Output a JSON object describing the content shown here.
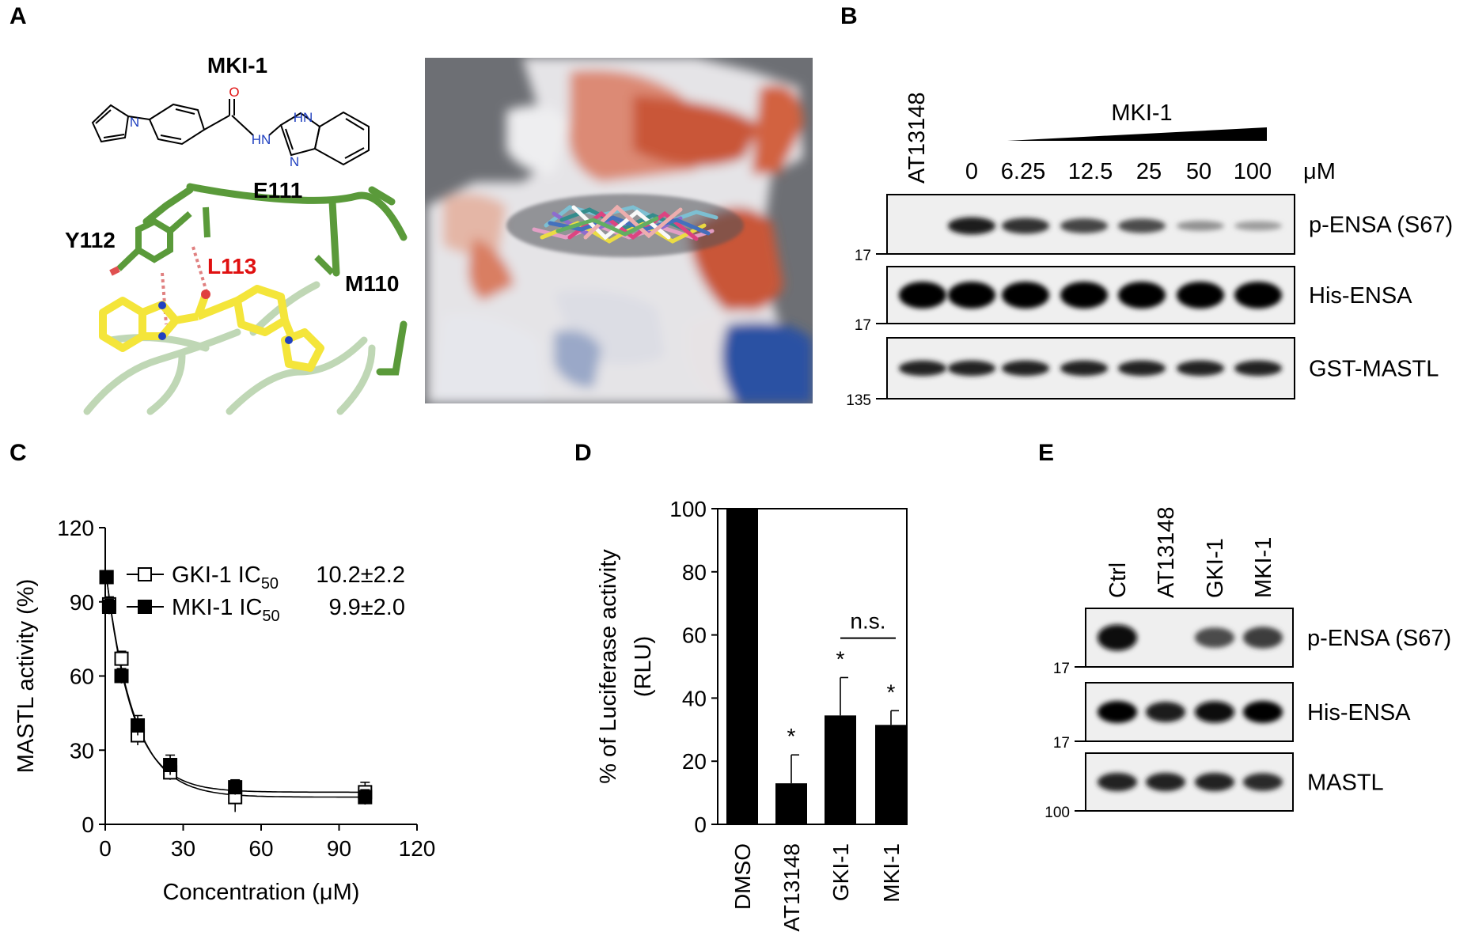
{
  "panels": {
    "A": {
      "label": "A",
      "compound_name": "MKI-1",
      "structure_atoms": [
        "O",
        "N",
        "HN",
        "HN",
        "N"
      ],
      "residues": [
        "E111",
        "Y112",
        "L113",
        "M110"
      ],
      "highlight_residue_color": "#e01010",
      "ligand_color": "#f4e53a",
      "protein_color": "#5a9a3a"
    },
    "B": {
      "label": "B",
      "reference_lane": "AT13148",
      "gradient_label": "MKI-1",
      "concentrations": [
        "0",
        "6.25",
        "12.5",
        "25",
        "50",
        "100"
      ],
      "unit": "μM",
      "blots": [
        {
          "name": "p-ENSA (S67)",
          "marker": "17",
          "intensities": [
            0.0,
            0.85,
            0.7,
            0.6,
            0.55,
            0.15,
            0.08
          ]
        },
        {
          "name": "His-ENSA",
          "marker": "17",
          "intensities": [
            1.0,
            1.0,
            1.0,
            1.0,
            1.0,
            1.0,
            1.0
          ]
        },
        {
          "name": "GST-MASTL",
          "marker": "135",
          "intensities": [
            0.8,
            0.8,
            0.8,
            0.8,
            0.8,
            0.8,
            0.8
          ]
        }
      ]
    },
    "C": {
      "label": "C"
    },
    "D": {
      "label": "D"
    },
    "E": {
      "label": "E",
      "lanes": [
        "Ctrl",
        "AT13148",
        "GKI-1",
        "MKI-1"
      ],
      "blots": [
        {
          "name": "p-ENSA (S67)",
          "marker": "17",
          "intensities": [
            0.95,
            0.0,
            0.55,
            0.65
          ]
        },
        {
          "name": "His-ENSA",
          "marker": "17",
          "intensities": [
            1.0,
            0.85,
            0.95,
            1.0
          ]
        },
        {
          "name": "MASTL",
          "marker": "100",
          "intensities": [
            0.8,
            0.8,
            0.8,
            0.75
          ]
        }
      ]
    }
  },
  "chart_data": [
    {
      "panel": "C",
      "type": "scatter",
      "ylabel": "MASTL activity (%)",
      "xlabel": "Concentration (μM)",
      "xlim": [
        0,
        120
      ],
      "ylim": [
        0,
        120
      ],
      "xticks": [
        "0",
        "30",
        "60",
        "90",
        "120"
      ],
      "yticks": [
        "0",
        "30",
        "60",
        "90",
        "120"
      ],
      "fit_curve": true,
      "series": [
        {
          "name": "GKI-1",
          "ic50_label": "IC",
          "ic50_sub": "50",
          "ic50_value": "10.2±2.2",
          "marker": "open-square",
          "x": [
            0.5,
            1.5,
            6.25,
            12.5,
            25,
            50,
            100
          ],
          "y": [
            100,
            89,
            67,
            36,
            21,
            11,
            13
          ],
          "err": [
            2,
            3,
            3,
            4,
            3,
            6,
            4
          ]
        },
        {
          "name": "MKI-1",
          "ic50_label": "IC",
          "ic50_sub": "50",
          "ic50_value": "9.9±2.0",
          "marker": "filled-square",
          "x": [
            0.5,
            1.5,
            6.25,
            12.5,
            25,
            50,
            100
          ],
          "y": [
            100,
            88,
            60,
            40,
            24,
            15,
            11
          ],
          "err": [
            2,
            3,
            3,
            4,
            4,
            3,
            3
          ]
        }
      ]
    },
    {
      "panel": "D",
      "type": "bar",
      "ylabel_line1": "% of Luciferase activity",
      "ylabel_line2": "(RLU)",
      "ylim": [
        0,
        100
      ],
      "yticks": [
        "0",
        "20",
        "40",
        "60",
        "80",
        "100"
      ],
      "categories": [
        "DMSO",
        "AT13148",
        "GKI-1",
        "MKI-1"
      ],
      "values": [
        100,
        13,
        34.5,
        31.5
      ],
      "errors": [
        0,
        9,
        12,
        4.5
      ],
      "significance": [
        "",
        "*",
        "*",
        "*"
      ],
      "comparison_label": "n.s.",
      "grid": false
    }
  ]
}
